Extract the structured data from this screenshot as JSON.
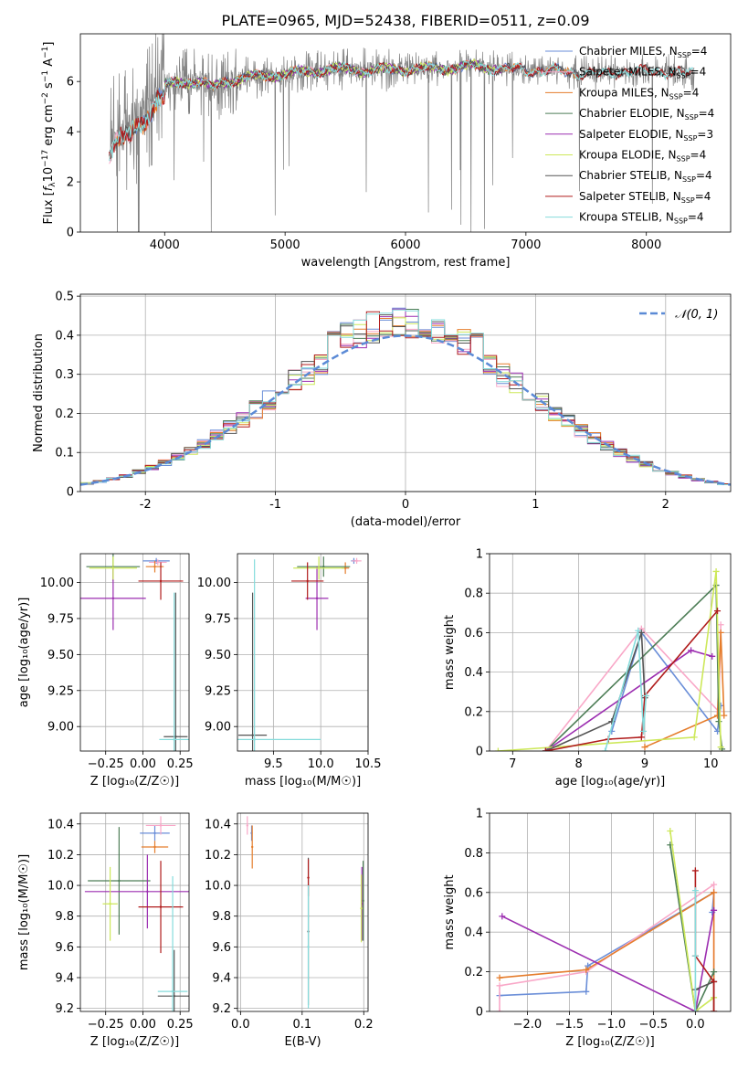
{
  "title": "PLATE=0965, MJD=52438, FIBERID=0511, z=0.09",
  "legend_models": [
    {
      "label": "Chabrier MILES, N",
      "sub": "SSP",
      "n": "=4",
      "color": "#6a8ed8"
    },
    {
      "label": "Salpeter MILES, N",
      "sub": "SSP",
      "n": "=4",
      "color": "#f9a8c8"
    },
    {
      "label": "Kroupa MILES, N",
      "sub": "SSP",
      "n": "=4",
      "color": "#e57d2c"
    },
    {
      "label": "Chabrier ELODIE, N",
      "sub": "SSP",
      "n": "=4",
      "color": "#4e7e57"
    },
    {
      "label": "Salpeter ELODIE, N",
      "sub": "SSP",
      "n": "=3",
      "color": "#9c2eb0"
    },
    {
      "label": "Kroupa ELODIE, N",
      "sub": "SSP",
      "n": "=4",
      "color": "#cde85a"
    },
    {
      "label": "Chabrier STELIB, N",
      "sub": "SSP",
      "n": "=4",
      "color": "#555555"
    },
    {
      "label": "Salpeter STELIB, N",
      "sub": "SSP",
      "n": "=4",
      "color": "#b01c1c"
    },
    {
      "label": "Kroupa STELIB, N",
      "sub": "SSP",
      "n": "=4",
      "color": "#86dcdc"
    }
  ],
  "chart_data": [
    {
      "id": "spectrum",
      "type": "line",
      "title": "PLATE=0965, MJD=52438, FIBERID=0511, z=0.09",
      "xlabel": "wavelength [Angstrom, rest frame]",
      "ylabel_pre": "Flux [",
      "ylabel_mid": "f",
      "ylabel_sub": "λ",
      "ylabel_mid2": "10",
      "ylabel_sup1": "−17",
      "ylabel_mid3": " erg cm",
      "ylabel_sup2": "−2",
      "ylabel_mid4": " s",
      "ylabel_sup3": "−1",
      "ylabel_mid5": " A",
      "ylabel_sup4": "−1",
      "ylabel_end": "]",
      "xlim": [
        3300,
        8700
      ],
      "ylim": [
        0,
        7.9
      ],
      "xticks": [
        4000,
        5000,
        6000,
        7000,
        8000
      ],
      "yticks": [
        0,
        2,
        4,
        6
      ],
      "continuum_x": [
        3500,
        3550,
        3600,
        3650,
        3700,
        3750,
        3800,
        3850,
        3900,
        3950,
        4000,
        4100,
        4200,
        4300,
        4400,
        4500,
        4600,
        4800,
        5000,
        5200,
        5400,
        5600,
        5800,
        6000,
        6200,
        6400,
        6600,
        6800,
        7000,
        7200,
        7400,
        7600,
        7800,
        8000,
        8200,
        8400
      ],
      "continuum_y": [
        3.3,
        3.5,
        3.9,
        4.0,
        4.2,
        4.4,
        4.6,
        4.8,
        5.2,
        5.6,
        5.8,
        5.95,
        6.0,
        6.0,
        5.75,
        6.0,
        6.1,
        6.2,
        6.3,
        6.4,
        6.5,
        6.45,
        6.45,
        6.5,
        6.5,
        6.55,
        6.6,
        6.5,
        6.45,
        6.45,
        6.35,
        6.3,
        6.4,
        6.4,
        6.4,
        6.3
      ],
      "observed_range": [
        3550,
        8400
      ],
      "series": [
        {
          "model": "Chabrier MILES",
          "x_range": [
            3700,
            7420
          ],
          "color": "#6a8ed8"
        },
        {
          "model": "Salpeter MILES",
          "x_range": [
            3540,
            7400
          ],
          "color": "#f9a8c8"
        },
        {
          "model": "Kroupa MILES",
          "x_range": [
            3540,
            7420
          ],
          "color": "#e57d2c"
        },
        {
          "model": "Chabrier ELODIE",
          "x_range": [
            4000,
            6800
          ],
          "color": "#4e7e57"
        },
        {
          "model": "Salpeter ELODIE",
          "x_range": [
            4000,
            6800
          ],
          "color": "#9c2eb0"
        },
        {
          "model": "Kroupa ELODIE",
          "x_range": [
            4000,
            6800
          ],
          "color": "#cde85a"
        },
        {
          "model": "Chabrier STELIB",
          "x_range": [
            3540,
            8400
          ],
          "color": "#555555"
        },
        {
          "model": "Salpeter STELIB",
          "x_range": [
            3540,
            8400
          ],
          "color": "#b01c1c"
        },
        {
          "model": "Kroupa STELIB",
          "x_range": [
            3540,
            8400
          ],
          "color": "#86dcdc"
        }
      ],
      "legend_position": "top-right"
    },
    {
      "id": "residuals",
      "type": "histogram",
      "xlabel": "(data-model)/error",
      "ylabel": "Normed distribution",
      "xlim": [
        -2.5,
        2.5
      ],
      "ylim": [
        0,
        0.505
      ],
      "xticks": [
        -2,
        -1,
        0,
        1,
        2
      ],
      "yticks": [
        0.0,
        0.1,
        0.2,
        0.3,
        0.4,
        0.5
      ],
      "bin_width": 0.1,
      "reference_curve": {
        "label": "𝒩(0, 1)",
        "color": "#5b8ad6",
        "style": "dashed"
      },
      "legend_position": "top-right",
      "grid": true
    },
    {
      "id": "age_vs_Z",
      "type": "scatter",
      "xlabel": "Z [log₁₀(Z/Z☉)]",
      "ylabel": "age  [log₁₀(age/yr)]",
      "xlim": [
        -0.42,
        0.31
      ],
      "ylim": [
        8.83,
        10.2
      ],
      "xticks": [
        -0.25,
        0.0,
        0.25
      ],
      "xticklabels": [
        "−0.25",
        "0.00",
        "0.25"
      ],
      "yticks": [
        9.0,
        9.25,
        9.5,
        9.75,
        10.0
      ],
      "yticklabels": [
        "9.00",
        "9.25",
        "9.50",
        "9.75",
        "10.00"
      ],
      "points": [
        {
          "x": 0.09,
          "y": 10.15,
          "xerr": 0.09,
          "yerr": 0.02,
          "color": "#6a8ed8"
        },
        {
          "x": 0.1,
          "y": 10.14,
          "xerr": 0.06,
          "yerr": 0.02,
          "color": "#f9a8c8"
        },
        {
          "x": 0.08,
          "y": 10.11,
          "xerr": 0.06,
          "yerr": 0.04,
          "color": "#e57d2c"
        },
        {
          "x": -0.2,
          "y": 10.11,
          "xerr": 0.18,
          "yerr": 0.1,
          "color": "#4e7e57"
        },
        {
          "x": -0.2,
          "y": 9.89,
          "xerr": 0.22,
          "yerr": 0.22,
          "color": "#9c2eb0"
        },
        {
          "x": -0.2,
          "y": 10.1,
          "xerr": 0.16,
          "yerr": 0.08,
          "color": "#cde85a"
        },
        {
          "x": 0.22,
          "y": 8.93,
          "xerr": 0.08,
          "yerr": 1.0,
          "color": "#555555"
        },
        {
          "x": 0.12,
          "y": 10.01,
          "xerr": 0.15,
          "yerr": 0.13,
          "color": "#b01c1c"
        },
        {
          "x": 0.21,
          "y": 8.91,
          "xerr": 0.1,
          "yerr": 1.02,
          "color": "#86dcdc"
        }
      ],
      "grid": true
    },
    {
      "id": "age_vs_mass",
      "type": "scatter",
      "xlabel": "mass [log₁₀(M/M☉)]",
      "ylabel": "",
      "xlim": [
        9.12,
        10.5
      ],
      "ylim": [
        8.83,
        10.2
      ],
      "xticks": [
        9.5,
        10.0,
        10.5
      ],
      "xticklabels": [
        "9.5",
        "10.0",
        "10.5"
      ],
      "yticks": [
        9.0,
        9.25,
        9.5,
        9.75,
        10.0
      ],
      "yticklabels": [
        "9.00",
        "9.25",
        "9.50",
        "9.75",
        "10.00"
      ],
      "points": [
        {
          "x": 10.35,
          "y": 10.15,
          "xerr": 0.03,
          "yerr": 0.02,
          "color": "#6a8ed8"
        },
        {
          "x": 10.38,
          "y": 10.15,
          "xerr": 0.05,
          "yerr": 0.02,
          "color": "#f9a8c8"
        },
        {
          "x": 10.26,
          "y": 10.1,
          "xerr": 0.04,
          "yerr": 0.04,
          "color": "#e57d2c"
        },
        {
          "x": 10.03,
          "y": 10.11,
          "xerr": 0.28,
          "yerr": 0.07,
          "color": "#4e7e57"
        },
        {
          "x": 9.96,
          "y": 9.89,
          "xerr": 0.12,
          "yerr": 0.22,
          "color": "#9c2eb0"
        },
        {
          "x": 9.98,
          "y": 10.1,
          "xerr": 0.27,
          "yerr": 0.08,
          "color": "#cde85a"
        },
        {
          "x": 9.28,
          "y": 8.94,
          "xerr": 0.15,
          "yerr": 0.99,
          "color": "#555555"
        },
        {
          "x": 9.86,
          "y": 10.01,
          "xerr": 0.17,
          "yerr": 0.13,
          "color": "#b01c1c"
        },
        {
          "x": 9.3,
          "y": 8.91,
          "xerr": 0.7,
          "yerr": 1.25,
          "color": "#86dcdc"
        }
      ],
      "grid": true
    },
    {
      "id": "weight_vs_age",
      "type": "line",
      "xlabel": "age  [log₁₀(age/yr)]",
      "ylabel": "mass weight",
      "xlim": [
        6.65,
        10.3
      ],
      "ylim": [
        0,
        1.0
      ],
      "xticks": [
        7,
        8,
        9,
        10
      ],
      "yticks": [
        0.0,
        0.2,
        0.4,
        0.6,
        0.8,
        1.0
      ],
      "series": [
        {
          "model": "Chabrier MILES",
          "color": "#6a8ed8",
          "x": [
            8.5,
            8.95,
            10.1,
            10.15
          ],
          "y": [
            0.1,
            0.6,
            0.1,
            0.23
          ]
        },
        {
          "model": "Salpeter MILES",
          "color": "#f9a8c8",
          "x": [
            7.5,
            8.95,
            10.12,
            10.15
          ],
          "y": [
            0.0,
            0.62,
            0.2,
            0.64
          ]
        },
        {
          "model": "Kroupa MILES",
          "color": "#e57d2c",
          "x": [
            9.0,
            10.1,
            10.15,
            10.2
          ],
          "y": [
            0.02,
            0.18,
            0.6,
            0.18
          ]
        },
        {
          "model": "Chabrier ELODIE",
          "color": "#4e7e57",
          "x": [
            7.5,
            10.08,
            10.12,
            10.17
          ],
          "y": [
            0.0,
            0.84,
            0.15,
            0.01
          ]
        },
        {
          "model": "Salpeter ELODIE",
          "color": "#9c2eb0",
          "x": [
            7.5,
            9.7,
            10.02
          ],
          "y": [
            0.0,
            0.51,
            0.48
          ]
        },
        {
          "model": "Kroupa ELODIE",
          "color": "#cde85a",
          "x": [
            6.78,
            9.75,
            10.08,
            10.15
          ],
          "y": [
            0.0,
            0.07,
            0.91,
            0.02
          ]
        },
        {
          "model": "Chabrier STELIB",
          "color": "#555555",
          "x": [
            7.5,
            8.5,
            8.95,
            9.0
          ],
          "y": [
            0.0,
            0.15,
            0.6,
            0.27
          ]
        },
        {
          "model": "Salpeter STELIB",
          "color": "#b01c1c",
          "x": [
            7.5,
            8.45,
            8.95,
            9.0,
            10.1
          ],
          "y": [
            0.0,
            0.06,
            0.07,
            0.28,
            0.71
          ]
        },
        {
          "model": "Kroupa STELIB",
          "color": "#86dcdc",
          "x": [
            8.4,
            8.9,
            8.98,
            9.02
          ],
          "y": [
            0.0,
            0.61,
            0.1,
            0.28
          ]
        }
      ],
      "grid": true
    },
    {
      "id": "mass_vs_Z",
      "type": "scatter",
      "xlabel": "Z [log₁₀(Z/Z☉)]",
      "ylabel": "mass [log₁₀(M/M☉)]",
      "xlim": [
        -0.42,
        0.31
      ],
      "ylim": [
        9.18,
        10.47
      ],
      "xticks": [
        -0.25,
        0.0,
        0.25
      ],
      "xticklabels": [
        "−0.25",
        "0.00",
        "0.25"
      ],
      "yticks": [
        9.2,
        9.4,
        9.6,
        9.8,
        10.0,
        10.2,
        10.4
      ],
      "yticklabels": [
        "9.2",
        "9.4",
        "9.6",
        "9.8",
        "10.0",
        "10.2",
        "10.4"
      ],
      "points": [
        {
          "x": 0.08,
          "y": 10.34,
          "xerr": 0.1,
          "yerr": 0.05,
          "color": "#6a8ed8"
        },
        {
          "x": 0.12,
          "y": 10.39,
          "xerr": 0.1,
          "yerr": 0.06,
          "color": "#f9a8c8"
        },
        {
          "x": 0.08,
          "y": 10.25,
          "xerr": 0.09,
          "yerr": 0.04,
          "color": "#e57d2c"
        },
        {
          "x": -0.16,
          "y": 10.03,
          "xerr": 0.21,
          "yerr": 0.35,
          "color": "#4e7e57"
        },
        {
          "x": 0.03,
          "y": 9.96,
          "xerr": 0.42,
          "yerr": 0.24,
          "color": "#9c2eb0"
        },
        {
          "x": -0.22,
          "y": 9.88,
          "xerr": 0.05,
          "yerr": 0.24,
          "color": "#cde85a"
        },
        {
          "x": 0.21,
          "y": 9.28,
          "xerr": 0.11,
          "yerr": 0.3,
          "color": "#555555"
        },
        {
          "x": 0.12,
          "y": 9.86,
          "xerr": 0.15,
          "yerr": 0.3,
          "color": "#b01c1c"
        },
        {
          "x": 0.2,
          "y": 9.31,
          "xerr": 0.1,
          "yerr": 0.75,
          "color": "#86dcdc"
        }
      ],
      "grid": true
    },
    {
      "id": "mass_vs_EBV",
      "type": "scatter",
      "xlabel": "E(B-V)",
      "ylabel": "",
      "xlim": [
        -0.005,
        0.207
      ],
      "ylim": [
        9.18,
        10.47
      ],
      "xticks": [
        0.0,
        0.1,
        0.2
      ],
      "xticklabels": [
        "0.0",
        "0.1",
        "0.2"
      ],
      "yticks": [
        9.2,
        9.4,
        9.6,
        9.8,
        10.0,
        10.2,
        10.4
      ],
      "yticklabels": [
        "9.2",
        "9.4",
        "9.6",
        "9.8",
        "10.0",
        "10.2",
        "10.4"
      ],
      "points": [
        {
          "x": 0.018,
          "y": 10.34,
          "yerr": 0.05,
          "color": "#6a8ed8"
        },
        {
          "x": 0.011,
          "y": 10.39,
          "yerr": 0.06,
          "color": "#f9a8c8"
        },
        {
          "x": 0.019,
          "y": 10.25,
          "yerr": 0.14,
          "color": "#e57d2c"
        },
        {
          "x": 0.199,
          "y": 9.9,
          "yerr": 0.26,
          "color": "#4e7e57"
        },
        {
          "x": 0.197,
          "y": 9.88,
          "yerr": 0.24,
          "color": "#9c2eb0"
        },
        {
          "x": 0.196,
          "y": 9.85,
          "yerr": 0.22,
          "color": "#cde85a"
        },
        {
          "x": 0.11,
          "y": 9.7,
          "yerr": 0.48,
          "color": "#555555"
        },
        {
          "x": 0.11,
          "y": 10.05,
          "yerr": 0.12,
          "color": "#b01c1c"
        },
        {
          "x": 0.11,
          "y": 9.6,
          "yerr": 0.4,
          "color": "#86dcdc"
        }
      ],
      "grid": true
    },
    {
      "id": "weight_vs_Z",
      "type": "line",
      "xlabel": "Z [log₁₀(Z/Z☉)]",
      "ylabel": "mass weight",
      "xlim": [
        -2.45,
        0.42
      ],
      "ylim": [
        0,
        1.0
      ],
      "xticks": [
        -2.0,
        -1.5,
        -1.0,
        -0.5,
        0.0
      ],
      "xticklabels": [
        "−2.0",
        "−1.5",
        "−1.0",
        "−0.5",
        "0.0"
      ],
      "yticks": [
        0.0,
        0.2,
        0.4,
        0.6,
        0.8,
        1.0
      ],
      "series": [
        {
          "model": "Chabrier MILES",
          "color": "#6a8ed8",
          "x": [
            -2.33,
            -1.3,
            -1.28,
            0.22,
            0.2
          ],
          "y": [
            0.08,
            0.1,
            0.23,
            0.6,
            0.5
          ]
        },
        {
          "model": "Salpeter MILES",
          "color": "#f9a8c8",
          "x": [
            -2.33,
            -2.33,
            -1.3,
            0.22,
            0.22
          ],
          "y": [
            0.0,
            0.13,
            0.2,
            0.64,
            0.0
          ]
        },
        {
          "model": "Kroupa MILES",
          "color": "#e57d2c",
          "x": [
            -2.33,
            -1.3,
            0.22,
            0.22
          ],
          "y": [
            0.17,
            0.21,
            0.6,
            0.0
          ]
        },
        {
          "model": "Chabrier ELODIE",
          "color": "#4e7e57",
          "x": [
            -0.3,
            0.0,
            0.22
          ],
          "y": [
            0.84,
            0.0,
            0.2
          ]
        },
        {
          "model": "Salpeter ELODIE",
          "color": "#9c2eb0",
          "x": [
            -2.3,
            0.0,
            0.22
          ],
          "y": [
            0.48,
            0.0,
            0.51
          ]
        },
        {
          "model": "Kroupa ELODIE",
          "color": "#cde85a",
          "x": [
            -0.3,
            0.0,
            0.22
          ],
          "y": [
            0.91,
            0.0,
            0.07
          ]
        },
        {
          "model": "Chabrier STELIB",
          "color": "#555555",
          "x": [
            0.0,
            0.0,
            0.22,
            0.22
          ],
          "y": [
            0.0,
            0.11,
            0.15,
            0.0
          ]
        },
        {
          "model": "Salpeter STELIB",
          "color": "#b01c1c",
          "x": [
            0.0,
            0.0,
            0.22,
            0.22
          ],
          "y": [
            0.71,
            0.28,
            0.15,
            0.0
          ]
        },
        {
          "model": "Kroupa STELIB",
          "color": "#86dcdc",
          "x": [
            0.0,
            0.0,
            0.0
          ],
          "y": [
            0.0,
            0.61,
            0.28
          ]
        }
      ],
      "grid": true
    }
  ]
}
